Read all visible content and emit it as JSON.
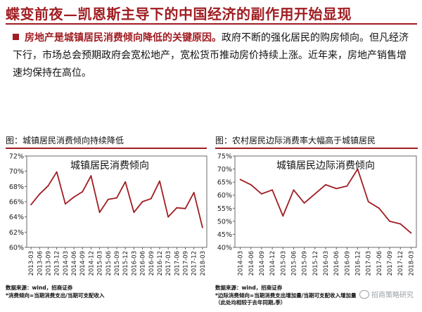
{
  "header": {
    "title": "蝶变前夜—凯恩斯主导下的中国经济的副作用开始显现"
  },
  "bullet": {
    "highlight": "房地产是城镇居民消费倾向降低的关键原因。",
    "rest": "政府不断的强化居民的购房倾向。但凡经济下行，市场总会预期政府会宽松地产，宽松货币推动房价持续上涨。近年来，房地产销售增速均保持在高位。"
  },
  "chart_data": [
    {
      "type": "line",
      "figure_label": "图：城镇居民消费倾向持续降低",
      "title": "城镇居民消费倾向",
      "x": [
        "2013-03",
        "2013-06",
        "2013-09",
        "2013-12",
        "2014-03",
        "2014-06",
        "2014-09",
        "2014-12",
        "2015-03",
        "2015-06",
        "2015-09",
        "2015-12",
        "2016-03",
        "2016-06",
        "2016-09",
        "2016-12",
        "2017-03",
        "2017-06",
        "2017-09",
        "2017-12",
        "2018-03"
      ],
      "xticks": [
        "2013-03",
        "2013-06",
        "2013-09",
        "2013-12",
        "2014-03",
        "2014-06",
        "2014-09",
        "2014-12",
        "2015-03",
        "2015-06",
        "2015-09",
        "2015-12",
        "2016-03",
        "2016-06",
        "2016-09",
        "2016-12",
        "2017-03",
        "2017-06",
        "2017-09",
        "2017-12",
        "2018-03"
      ],
      "values": [
        65.6,
        67.0,
        68.1,
        69.9,
        65.7,
        66.6,
        67.3,
        69.4,
        64.6,
        66.3,
        66.5,
        68.6,
        64.6,
        66.0,
        66.4,
        68.7,
        64.0,
        65.2,
        65.1,
        67.2,
        62.6
      ],
      "ylim": [
        60,
        72
      ],
      "yticks": [
        60,
        62,
        64,
        66,
        68,
        70,
        72
      ],
      "ytick_labels": [
        "60%",
        "62%",
        "64%",
        "66%",
        "68%",
        "70%",
        "72%"
      ],
      "color": "#a01d22",
      "grid": false,
      "source": "数据来源：wind，招商证券",
      "note": "*消费倾向=当期消费支出/当期可支配收入"
    },
    {
      "type": "line",
      "figure_label": "图：农村居民边际消费率大幅高于城镇居民",
      "title": "城镇居民边际消费倾向",
      "x": [
        "2014-03",
        "2014-06",
        "2014-09",
        "2014-12",
        "2015-03",
        "2015-06",
        "2015-09",
        "2015-12",
        "2016-03",
        "2016-06",
        "2016-09",
        "2016-12",
        "2017-03",
        "2017-06",
        "2017-09",
        "2017-12",
        "2018-03"
      ],
      "xticks": [
        "2014-03",
        "2014-06",
        "2014-09",
        "2014-12",
        "2015-03",
        "2015-06",
        "2015-09",
        "2015-12",
        "2016-03",
        "2016-06",
        "2016-09",
        "2016-12",
        "2017-03",
        "2017-06",
        "2017-09",
        "2017-12",
        "2018-03"
      ],
      "values": [
        66.0,
        64.0,
        60.5,
        62.0,
        52.0,
        62.0,
        57.0,
        60.5,
        64.0,
        62.5,
        63.5,
        70.0,
        57.5,
        55.0,
        50.0,
        49.0,
        45.5
      ],
      "ylim": [
        40,
        75
      ],
      "yticks": [
        40,
        45,
        50,
        55,
        60,
        65,
        70,
        75
      ],
      "ytick_labels": [
        "40%",
        "45%",
        "50%",
        "55%",
        "60%",
        "65%",
        "70%",
        "75%"
      ],
      "color": "#a01d22",
      "grid": false,
      "source": "数据来源：wind，招商证券",
      "note": "*边际消费倾向=当期消费支出增加量/当期可支配收入增加量（此处均相较于去年同期,季）"
    }
  ],
  "watermark": "招商策略研究"
}
